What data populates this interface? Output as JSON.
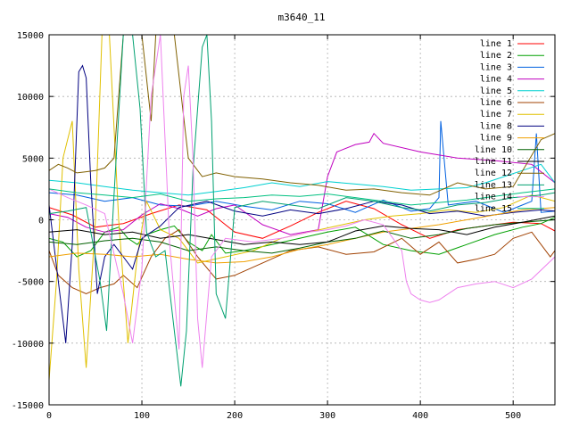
{
  "chart_data": {
    "type": "line",
    "title": "m3640_11",
    "xlabel": "",
    "ylabel": "",
    "xlim": [
      0,
      545
    ],
    "ylim": [
      -15000,
      15000
    ],
    "x_ticks": [
      0,
      100,
      200,
      300,
      400,
      500
    ],
    "y_ticks": [
      -15000,
      -10000,
      -5000,
      0,
      5000,
      10000,
      15000
    ],
    "x_tick_labels": [
      "0",
      "100",
      "200",
      "300",
      "400",
      "500"
    ],
    "y_tick_labels": [
      "-15000",
      "-10000",
      "-5000",
      "0",
      "5000",
      "10000",
      "15000"
    ],
    "grid": true,
    "legend_position": "top-right",
    "series": [
      {
        "name": "line 1",
        "color": "#ff0000",
        "x": [
          0,
          25,
          50,
          80,
          110,
          140,
          170,
          200,
          230,
          260,
          290,
          320,
          350,
          380,
          410,
          440,
          470,
          500,
          530,
          545
        ],
        "values": [
          1000,
          400,
          -600,
          -300,
          500,
          1200,
          800,
          -1000,
          -1500,
          -500,
          600,
          1500,
          900,
          -400,
          -1500,
          -800,
          -500,
          -200,
          -300,
          -900
        ]
      },
      {
        "name": "line 2",
        "color": "#00a000",
        "x": [
          0,
          15,
          30,
          45,
          60,
          75,
          85,
          95,
          105,
          120,
          135,
          150,
          165,
          175,
          190,
          210,
          240,
          270,
          300,
          330,
          360,
          390,
          420,
          450,
          480,
          510,
          530,
          545
        ],
        "values": [
          -1500,
          -1800,
          -3000,
          -2500,
          -1000,
          -600,
          -1500,
          -2000,
          -1200,
          -800,
          -500,
          -1800,
          -2500,
          -1200,
          -2700,
          -2500,
          -2000,
          -1500,
          -1000,
          -600,
          -2000,
          -2500,
          -2800,
          -2000,
          -1200,
          -600,
          -300,
          200
        ]
      },
      {
        "name": "line 3",
        "color": "#0060e0",
        "x": [
          0,
          30,
          60,
          90,
          120,
          150,
          180,
          210,
          240,
          270,
          300,
          330,
          360,
          390,
          410,
          420,
          422,
          430,
          460,
          490,
          510,
          520,
          525,
          530,
          545
        ],
        "values": [
          2200,
          2000,
          1500,
          1800,
          1200,
          1100,
          1500,
          1100,
          800,
          1500,
          1300,
          600,
          1600,
          700,
          900,
          1800,
          8000,
          1200,
          1500,
          600,
          1200,
          1500,
          7000,
          600,
          700
        ]
      },
      {
        "name": "line 4",
        "color": "#c000c0",
        "x": [
          0,
          20,
          40,
          60,
          80,
          100,
          120,
          140,
          160,
          180,
          200,
          230,
          260,
          290,
          300,
          310,
          330,
          345,
          350,
          360,
          400,
          440,
          480,
          520,
          545
        ],
        "values": [
          500,
          200,
          -600,
          -1000,
          -800,
          400,
          1300,
          900,
          300,
          900,
          1200,
          -400,
          -1200,
          -800,
          3500,
          5500,
          6100,
          6300,
          7000,
          6200,
          5500,
          5000,
          4800,
          4500,
          3000
        ]
      },
      {
        "name": "line 5",
        "color": "#00d0d0",
        "x": [
          0,
          30,
          60,
          90,
          120,
          150,
          180,
          210,
          240,
          270,
          300,
          330,
          360,
          390,
          420,
          450,
          470,
          490,
          510,
          530,
          545
        ],
        "values": [
          3200,
          3000,
          2700,
          2400,
          2200,
          2000,
          2300,
          2600,
          3000,
          2700,
          3100,
          2900,
          2700,
          2400,
          2500,
          2600,
          3000,
          3500,
          4000,
          4500,
          3000
        ]
      },
      {
        "name": "line 6",
        "color": "#a04000",
        "x": [
          0,
          10,
          25,
          40,
          55,
          70,
          80,
          95,
          110,
          125,
          140,
          160,
          180,
          200,
          230,
          260,
          290,
          320,
          350,
          380,
          400,
          420,
          440,
          460,
          480,
          500,
          520,
          540,
          545
        ],
        "values": [
          -2500,
          -4500,
          -5500,
          -6000,
          -5500,
          -5200,
          -4500,
          -5500,
          -3000,
          -1500,
          -800,
          -3000,
          -4800,
          -4500,
          -3500,
          -2500,
          -2200,
          -2800,
          -2600,
          -1500,
          -2800,
          -1800,
          -3500,
          -3200,
          -2800,
          -1500,
          -1000,
          -3000,
          -2500
        ]
      },
      {
        "name": "line 7",
        "color": "#e0c000",
        "x": [
          0,
          8,
          15,
          25,
          32,
          40,
          50,
          57,
          65,
          75,
          85,
          95,
          105,
          120,
          140,
          160,
          190,
          220,
          250,
          280,
          310,
          340,
          370,
          400,
          430,
          460,
          490,
          520,
          545
        ],
        "values": [
          -13000,
          -5000,
          5000,
          8000,
          -4000,
          -12000,
          0,
          15000,
          15000,
          0,
          -10000,
          -3000,
          1500,
          -800,
          -1500,
          -3500,
          -3000,
          -2500,
          -1500,
          -1000,
          -500,
          0,
          300,
          500,
          800,
          600,
          1000,
          2000,
          1500
        ]
      },
      {
        "name": "line 8",
        "color": "#000080",
        "x": [
          0,
          10,
          18,
          25,
          32,
          36,
          40,
          45,
          52,
          60,
          70,
          80,
          90,
          100,
          120,
          140,
          170,
          200,
          230,
          260,
          290,
          320,
          350,
          380,
          410,
          440,
          470,
          500,
          530,
          545
        ],
        "values": [
          1200,
          -5000,
          -10000,
          -2000,
          12000,
          12500,
          11500,
          3000,
          -6000,
          -3000,
          -2000,
          -3000,
          -4000,
          -1500,
          -500,
          1000,
          1500,
          700,
          300,
          800,
          500,
          900,
          1500,
          1200,
          500,
          700,
          300,
          600,
          800,
          700
        ]
      },
      {
        "name": "line 9",
        "color": "#f0a000",
        "x": [
          0,
          30,
          60,
          90,
          120,
          150,
          180,
          210,
          240,
          270,
          300,
          330,
          360,
          390,
          420,
          450,
          480,
          510,
          545
        ],
        "values": [
          -3000,
          -2700,
          -2800,
          -3000,
          -2800,
          -3200,
          -3500,
          -3400,
          -3000,
          -2400,
          -2000,
          -1500,
          -1000,
          -700,
          -400,
          0,
          400,
          800,
          1000
        ]
      },
      {
        "name": "line 10",
        "color": "#006000",
        "x": [
          0,
          30,
          60,
          90,
          120,
          150,
          180,
          210,
          240,
          270,
          300,
          330,
          360,
          390,
          420,
          450,
          480,
          510,
          545
        ],
        "values": [
          -1800,
          -2000,
          -1700,
          -1500,
          -1800,
          -2500,
          -2200,
          -2500,
          -2700,
          -2300,
          -1800,
          -1500,
          -900,
          -1500,
          -1200,
          -700,
          -400,
          -200,
          0
        ]
      },
      {
        "name": "line 11",
        "color": "#000000",
        "x": [
          0,
          30,
          60,
          90,
          120,
          150,
          180,
          210,
          240,
          270,
          300,
          330,
          360,
          390,
          420,
          450,
          480,
          510,
          545
        ],
        "values": [
          -1000,
          -800,
          -1200,
          -1000,
          -1500,
          -1200,
          -1600,
          -2000,
          -1800,
          -2000,
          -1800,
          -900,
          -500,
          -700,
          -800,
          -1200,
          -600,
          -200,
          300
        ]
      },
      {
        "name": "line 12",
        "color": "#806000",
        "x": [
          0,
          10,
          20,
          30,
          40,
          50,
          60,
          70,
          80,
          90,
          100,
          110,
          115,
          120,
          125,
          135,
          150,
          165,
          180,
          200,
          230,
          260,
          290,
          320,
          350,
          380,
          410,
          440,
          470,
          500,
          530,
          545
        ],
        "values": [
          4000,
          4500,
          4200,
          3800,
          3900,
          4000,
          4200,
          5000,
          15000,
          15000,
          15000,
          8000,
          15000,
          15000,
          15000,
          15000,
          5000,
          3500,
          3800,
          3500,
          3300,
          3000,
          2800,
          2400,
          2500,
          2200,
          2000,
          3000,
          2500,
          2700,
          6500,
          7000
        ]
      },
      {
        "name": "line 13",
        "color": "#00a070",
        "x": [
          0,
          20,
          40,
          55,
          62,
          70,
          80,
          90,
          98,
          105,
          115,
          125,
          135,
          142,
          148,
          155,
          160,
          165,
          170,
          175,
          180,
          190,
          200,
          230,
          260,
          290,
          320,
          350,
          380,
          410,
          440,
          470,
          500,
          530,
          545
        ],
        "values": [
          500,
          700,
          1000,
          -5000,
          -9000,
          2000,
          15000,
          15000,
          9000,
          -1000,
          -3000,
          -2500,
          -9000,
          -13500,
          -9000,
          4000,
          9000,
          14000,
          15000,
          8000,
          -6000,
          -8000,
          1000,
          1500,
          1200,
          900,
          1800,
          1500,
          1000,
          700,
          1200,
          1400,
          1800,
          2000,
          2200
        ]
      },
      {
        "name": "line 14",
        "color": "#ee82ee",
        "x": [
          0,
          20,
          40,
          60,
          80,
          90,
          100,
          110,
          120,
          130,
          140,
          145,
          150,
          155,
          160,
          165,
          175,
          190,
          220,
          250,
          280,
          300,
          320,
          340,
          360,
          380,
          385,
          390,
          400,
          410,
          420,
          440,
          460,
          480,
          500,
          520,
          545
        ],
        "values": [
          2500,
          1800,
          1200,
          500,
          -6000,
          -10000,
          -4000,
          10000,
          15000,
          -2000,
          -10500,
          10000,
          12500,
          5000,
          -8000,
          -12000,
          -3000,
          -1500,
          -1800,
          -1500,
          -1000,
          -800,
          -500,
          0,
          -400,
          -2500,
          -5000,
          -6000,
          -6500,
          -6700,
          -6500,
          -5500,
          -5200,
          -5000,
          -5500,
          -4800,
          -3000
        ]
      },
      {
        "name": "line 15",
        "color": "#00c080",
        "x": [
          0,
          30,
          60,
          90,
          120,
          150,
          180,
          210,
          240,
          270,
          300,
          330,
          360,
          390,
          420,
          450,
          480,
          510,
          545
        ],
        "values": [
          2500,
          2200,
          2000,
          1800,
          2100,
          1500,
          1700,
          1800,
          2000,
          1900,
          2100,
          1800,
          1500,
          1200,
          1400,
          1600,
          1900,
          2200,
          2500
        ]
      }
    ]
  }
}
